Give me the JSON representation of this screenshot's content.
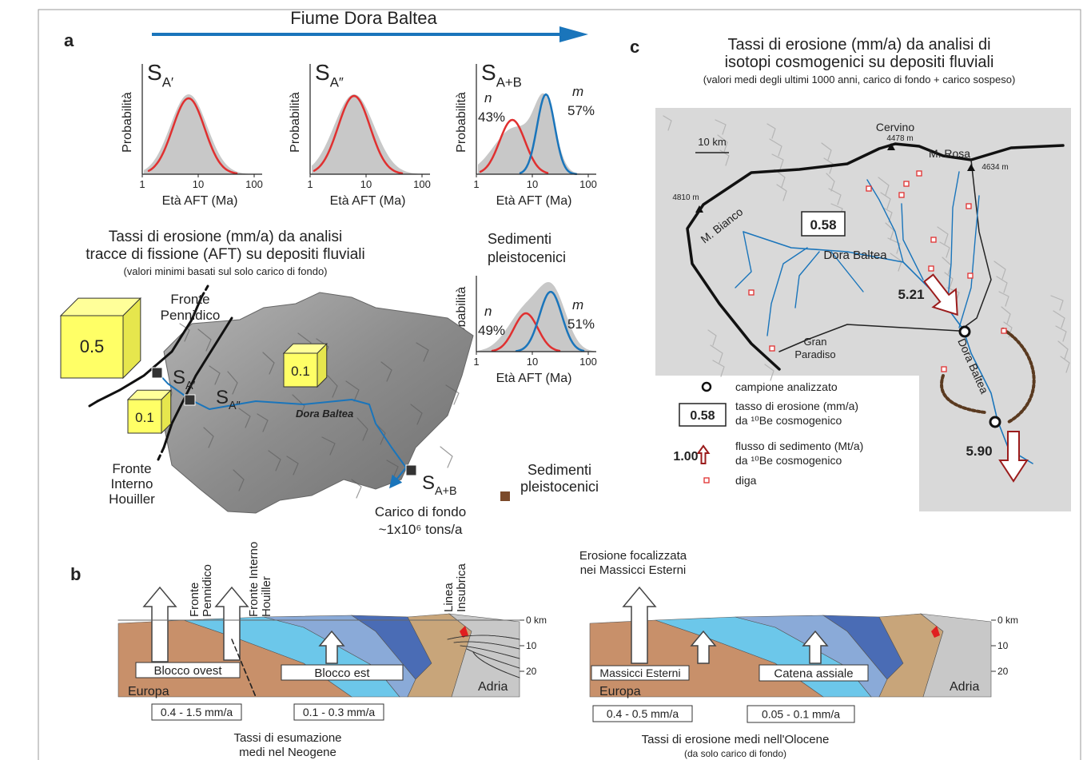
{
  "river_label": "Fiume Dora Baltea",
  "panel_a": {
    "label": "a",
    "plots": [
      {
        "symbol": "S",
        "subscript": "A′",
        "y_label": "Probabilità",
        "x_label": "Età AFT (Ma)",
        "x_ticks": [
          "1",
          "10",
          "100"
        ]
      },
      {
        "symbol": "S",
        "subscript": "A″",
        "y_label": "Probabilità",
        "x_label": "Età AFT (Ma)",
        "x_ticks": [
          "1",
          "10",
          "100"
        ]
      },
      {
        "symbol": "S",
        "subscript": "A+B",
        "y_label": "Probabilità",
        "x_label": "Età AFT (Ma)",
        "x_ticks": [
          "1",
          "10",
          "100"
        ],
        "components": [
          {
            "name": "n",
            "share": "43%"
          },
          {
            "name": "m",
            "share": "57%"
          }
        ]
      },
      {
        "heading": [
          "Sedimenti",
          "pleistocenici"
        ],
        "y_label": "Probabilità",
        "x_label": "Età AFT (Ma)",
        "x_ticks": [
          "1",
          "10",
          "100"
        ],
        "components": [
          {
            "name": "n",
            "share": "49%"
          },
          {
            "name": "m",
            "share": "51%"
          }
        ]
      }
    ],
    "map_title": [
      "Tassi di erosione (mm/a) da analisi",
      "tracce di fissione (AFT) su depositi fluviali"
    ],
    "map_subtitle": "(valori minimi basati sul solo carico di fondo)",
    "cubes": [
      "0.5",
      "0.1",
      "0.1"
    ],
    "samples": [
      {
        "symbol": "S",
        "subscript": "A′"
      },
      {
        "symbol": "S",
        "subscript": "A″"
      },
      {
        "symbol": "S",
        "subscript": "A+B"
      }
    ],
    "fronte_pennidico": [
      "Fronte",
      "Pennidico"
    ],
    "fronte_houiller": [
      "Fronte",
      "Interno",
      "Houiller"
    ],
    "river": "Dora Baltea",
    "load": [
      "Carico di fondo",
      "~1x10⁶ tons/a"
    ],
    "legend_sediments": [
      "Sedimenti",
      "pleistocenici"
    ]
  },
  "panel_c": {
    "label": "c",
    "title": [
      "Tassi di erosione (mm/a) da analisi di",
      "isotopi cosmogenici su depositi fluviali"
    ],
    "subtitle": "(valori medi degli ultimi 1000 anni, carico di fondo + carico sospeso)",
    "scale": "10 km",
    "peaks": [
      {
        "name": "Cervino",
        "elevation": "4478 m"
      },
      {
        "name": "M. Rosa",
        "elevation": "4634 m"
      },
      {
        "name": "M. Bianco",
        "elevation": "4810 m"
      }
    ],
    "erosion_rate": "0.58",
    "rivers": [
      "Dora Baltea",
      "Dora Baltea"
    ],
    "fluxes": [
      "5.21",
      "5.90"
    ],
    "place": [
      "Gran",
      "Paradiso"
    ],
    "legend": {
      "sample": "campione analizzato",
      "rate_example": "0.58",
      "rate_text": [
        "tasso di erosione (mm/a)",
        "da ¹⁰Be cosmogenico"
      ],
      "flux_example": "1.00",
      "flux_text": [
        "flusso di sedimento (Mt/a)",
        "da ¹⁰Be cosmogenico"
      ],
      "dam": "diga"
    }
  },
  "panel_b": {
    "label": "b",
    "left": {
      "fronts": [
        [
          "Fronte",
          "Pennidico"
        ],
        [
          "Fronte Interno",
          "Houiller"
        ],
        [
          "Linea",
          "Insubrica"
        ]
      ],
      "blocks": [
        "Blocco ovest",
        "Blocco est"
      ],
      "plates": [
        "Europa",
        "Adria"
      ],
      "depth_ticks": [
        "0 km",
        "10",
        "20"
      ],
      "rates": [
        "0.4 - 1.5 mm/a",
        "0.1 - 0.3 mm/a"
      ],
      "caption": [
        "Tassi di esumazione",
        "medi nel Neogene"
      ]
    },
    "right": {
      "note": [
        "Erosione focalizzata",
        "nei Massicci Esterni"
      ],
      "blocks": [
        "Massicci Esterni",
        "Catena assiale"
      ],
      "plates": [
        "Europa",
        "Adria"
      ],
      "depth_ticks": [
        "0 km",
        "10",
        "20"
      ],
      "rates": [
        "0.4 - 0.5 mm/a",
        "0.05 - 0.1 mm/a"
      ],
      "caption": [
        "Tassi di erosione medi nell'Olocene",
        "(da solo carico di fondo)"
      ]
    }
  }
}
